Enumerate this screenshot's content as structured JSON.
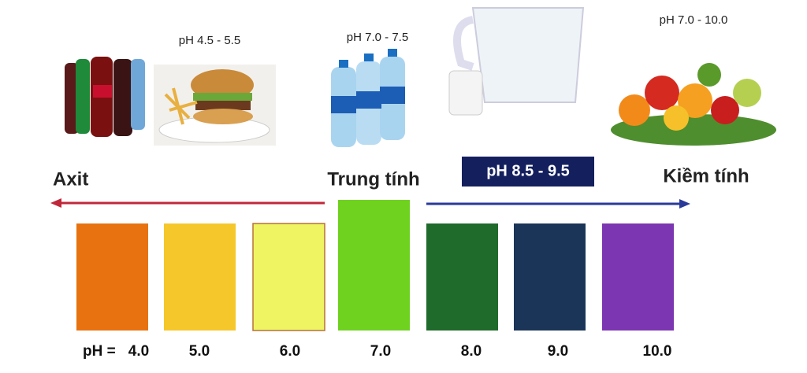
{
  "food_labels": [
    "pH 4.5 - 5.5",
    "pH 7.0 - 7.5",
    "pH 7.0 - 10.0"
  ],
  "axis": {
    "left": "Axit",
    "middle": "Trung tính",
    "right": "Kiềm tính",
    "highlight": "pH 8.5 - 9.5"
  },
  "scale": {
    "prefix": "pH =",
    "levels": [
      {
        "label": "4.0",
        "color": "#e8720f"
      },
      {
        "label": "5.0",
        "color": "#f5c72a"
      },
      {
        "label": "6.0",
        "color": "#eef462"
      },
      {
        "label": "7.0",
        "color": "#6fd21f"
      },
      {
        "label": "8.0",
        "color": "#1e6b2b"
      },
      {
        "label": "9.0",
        "color": "#1b3558"
      },
      {
        "label": "10.0",
        "color": "#7c36b2"
      }
    ]
  }
}
